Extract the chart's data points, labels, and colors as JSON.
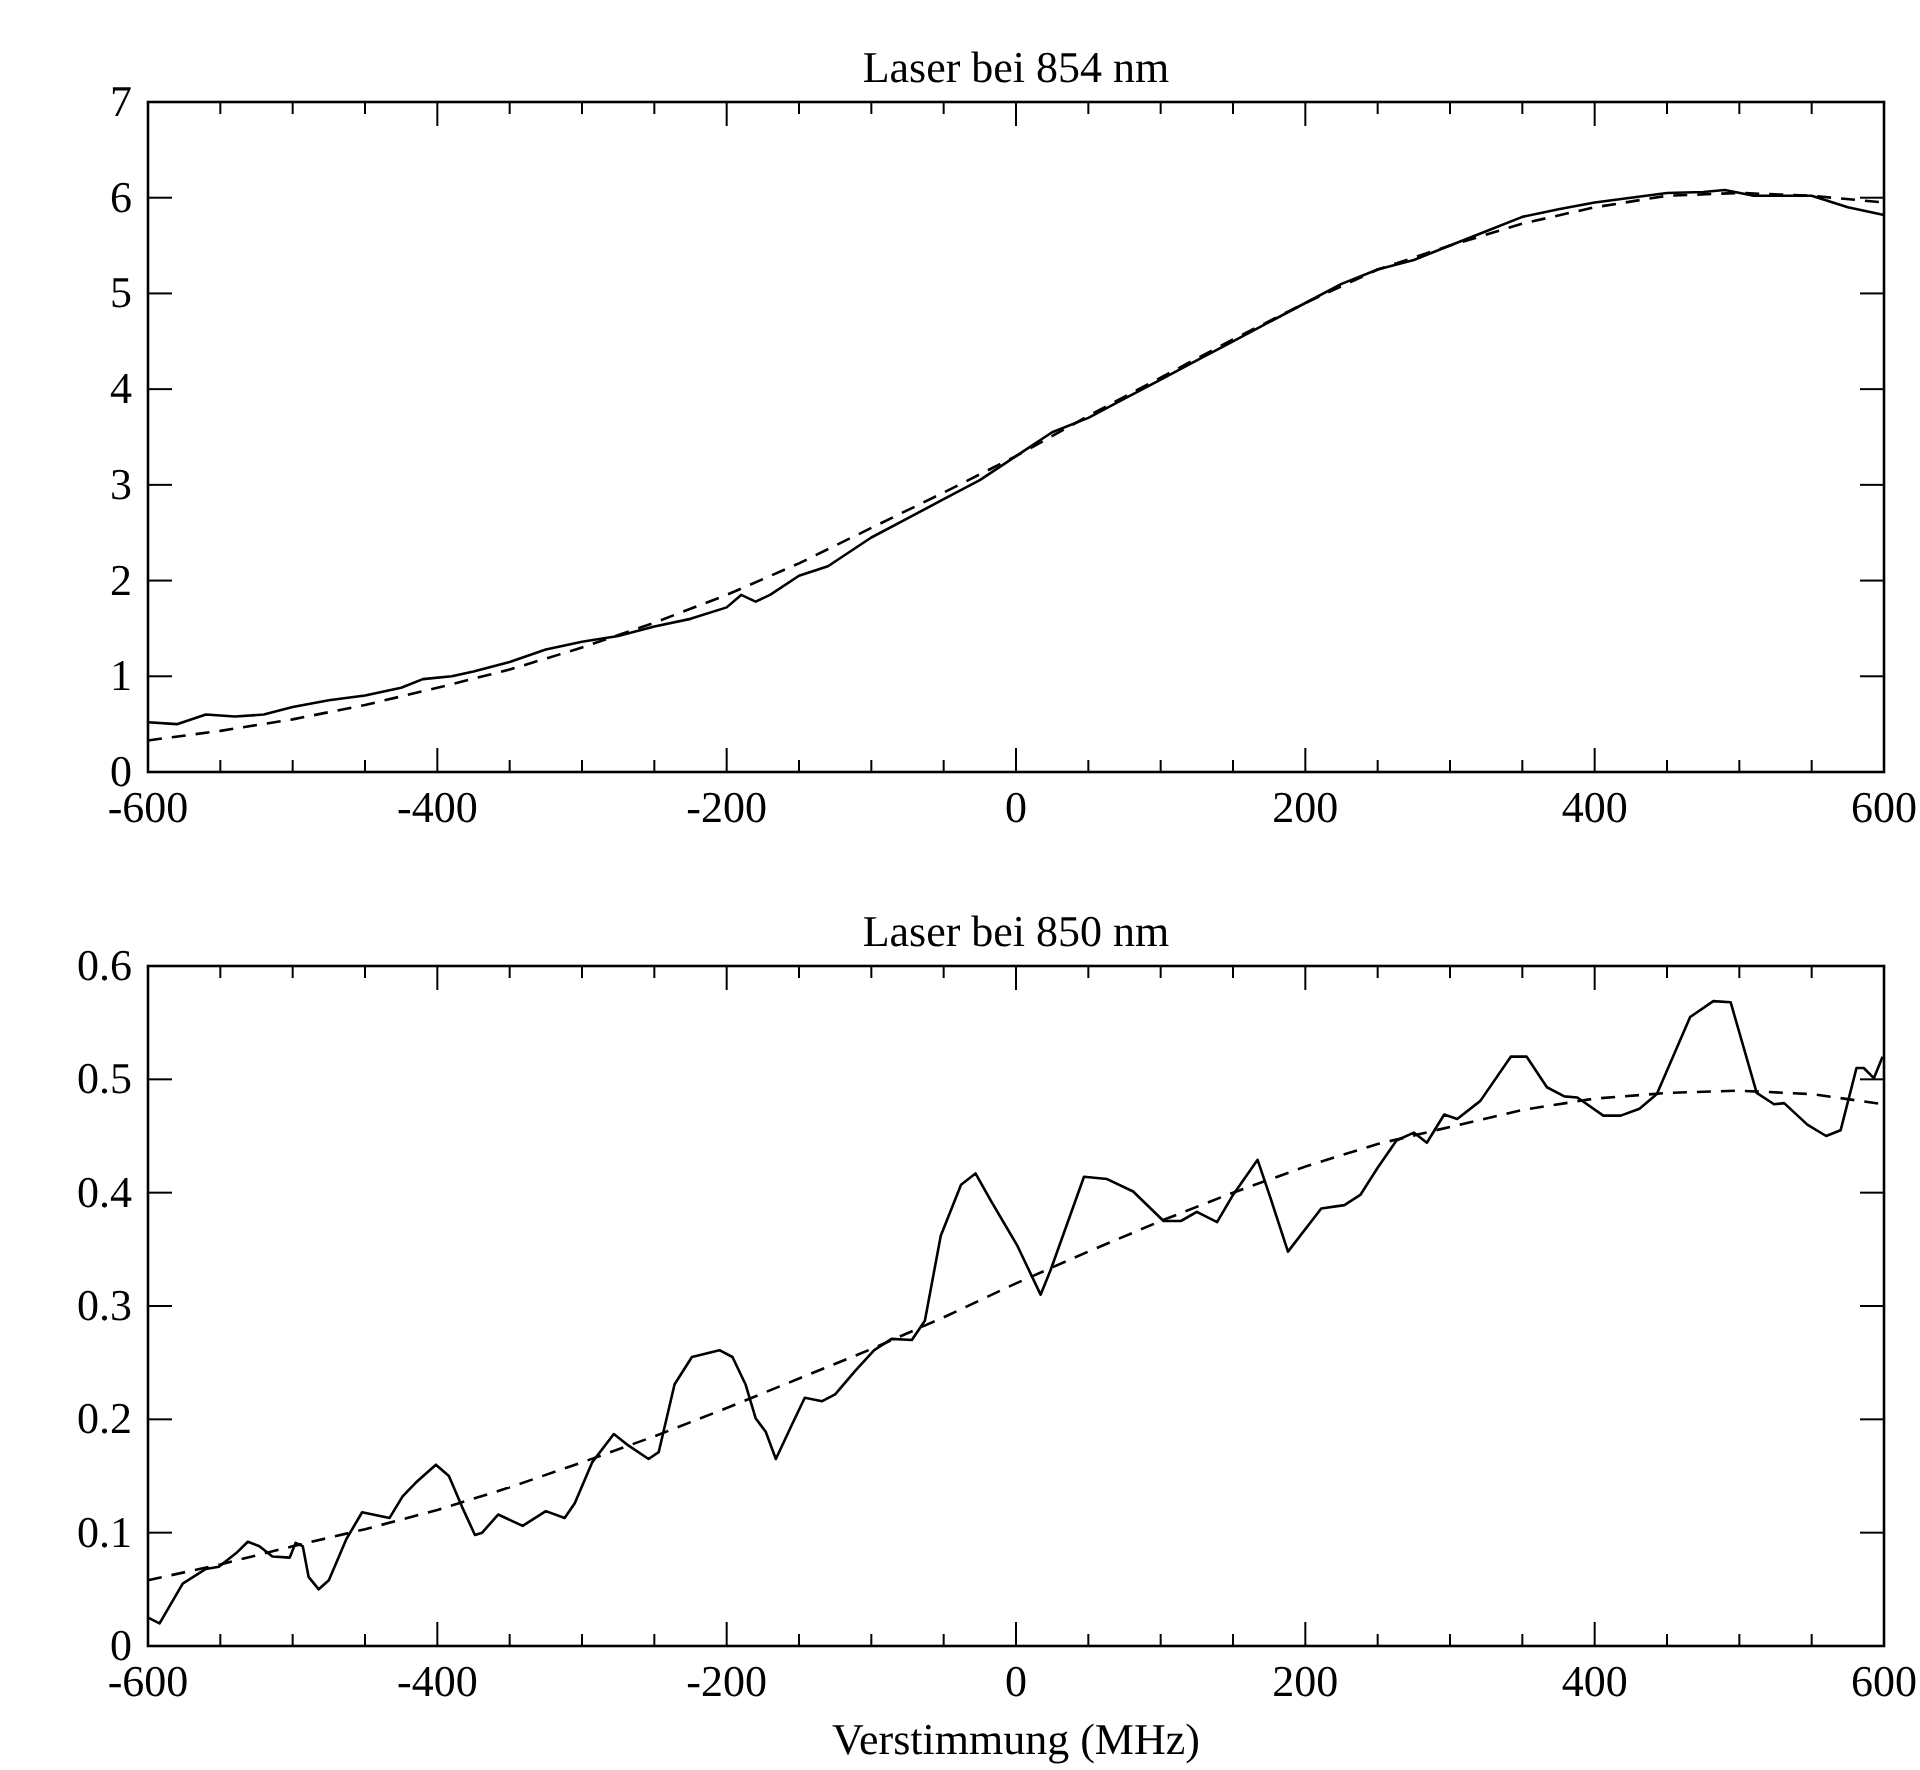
{
  "chart_data": [
    {
      "type": "line",
      "title": "Laser bei 854 nm",
      "xlim": [
        -600,
        600
      ],
      "ylim": [
        0,
        7
      ],
      "xticks": [
        -600,
        {
          "value": -550,
          "label": null
        },
        -400,
        {
          "value": -500,
          "label": null
        },
        {
          "value": -450,
          "label": null
        },
        {
          "value": -350,
          "label": null
        },
        {
          "value": -300,
          "label": null
        },
        {
          "value": -250,
          "label": null
        },
        -200,
        {
          "value": -150,
          "label": null
        },
        {
          "value": -100,
          "label": null
        },
        {
          "value": -50,
          "label": null
        },
        0,
        {
          "value": 50,
          "label": null
        },
        {
          "value": 100,
          "label": null
        },
        {
          "value": 150,
          "label": null
        },
        200,
        {
          "value": 250,
          "label": null
        },
        {
          "value": 300,
          "label": null
        },
        {
          "value": 350,
          "label": null
        },
        400,
        {
          "value": 450,
          "label": null
        },
        {
          "value": 500,
          "label": null
        },
        {
          "value": 550,
          "label": null
        },
        600
      ],
      "yticks": [
        0,
        1,
        2,
        3,
        4,
        5,
        6,
        7
      ],
      "grid": false,
      "series": [
        {
          "color": "#000000",
          "line_style": "solid",
          "x": [
            -600,
            -580,
            -560,
            -540,
            -520,
            -500,
            -475,
            -450,
            -425,
            -410,
            -390,
            -375,
            -350,
            -325,
            -300,
            -275,
            -250,
            -225,
            -200,
            -190,
            -180,
            -170,
            -150,
            -130,
            -100,
            -75,
            -50,
            -25,
            0,
            25,
            50,
            75,
            100,
            125,
            150,
            175,
            200,
            225,
            250,
            275,
            300,
            325,
            350,
            375,
            400,
            425,
            450,
            475,
            490,
            510,
            525,
            550,
            575,
            600
          ],
          "values": [
            0.52,
            0.5,
            0.6,
            0.58,
            0.6,
            0.68,
            0.75,
            0.8,
            0.88,
            0.97,
            1.0,
            1.05,
            1.15,
            1.28,
            1.36,
            1.42,
            1.52,
            1.6,
            1.72,
            1.85,
            1.78,
            1.85,
            2.05,
            2.15,
            2.45,
            2.65,
            2.85,
            3.05,
            3.3,
            3.55,
            3.7,
            3.9,
            4.1,
            4.3,
            4.5,
            4.7,
            4.9,
            5.1,
            5.25,
            5.35,
            5.5,
            5.65,
            5.8,
            5.88,
            5.95,
            6.0,
            6.05,
            6.06,
            6.08,
            6.02,
            6.02,
            6.02,
            5.9,
            5.82
          ]
        },
        {
          "color": "#000000",
          "line_style": "dashed",
          "x": [
            -600,
            -550,
            -500,
            -450,
            -400,
            -350,
            -300,
            -250,
            -200,
            -150,
            -100,
            -50,
            0,
            50,
            100,
            150,
            200,
            250,
            300,
            350,
            400,
            450,
            500,
            550,
            600
          ],
          "values": [
            0.33,
            0.43,
            0.55,
            0.7,
            0.88,
            1.07,
            1.3,
            1.56,
            1.85,
            2.18,
            2.55,
            2.92,
            3.3,
            3.72,
            4.12,
            4.52,
            4.9,
            5.25,
            5.5,
            5.73,
            5.9,
            6.02,
            6.05,
            6.02,
            5.95
          ]
        }
      ]
    },
    {
      "type": "line",
      "title": "Laser bei 850 nm",
      "xlabel": "Verstimmung (MHz)",
      "xlim": [
        -600,
        600
      ],
      "ylim": [
        0,
        0.6
      ],
      "xticks": [
        -600,
        {
          "value": -550,
          "label": null
        },
        -400,
        {
          "value": -500,
          "label": null
        },
        {
          "value": -450,
          "label": null
        },
        {
          "value": -350,
          "label": null
        },
        {
          "value": -300,
          "label": null
        },
        {
          "value": -250,
          "label": null
        },
        -200,
        {
          "value": -150,
          "label": null
        },
        {
          "value": -100,
          "label": null
        },
        {
          "value": -50,
          "label": null
        },
        0,
        {
          "value": 50,
          "label": null
        },
        {
          "value": 100,
          "label": null
        },
        {
          "value": 150,
          "label": null
        },
        200,
        {
          "value": 250,
          "label": null
        },
        {
          "value": 300,
          "label": null
        },
        {
          "value": 350,
          "label": null
        },
        400,
        {
          "value": 450,
          "label": null
        },
        {
          "value": 500,
          "label": null
        },
        {
          "value": 550,
          "label": null
        },
        600
      ],
      "yticks": [
        0,
        0.1,
        0.2,
        0.3,
        0.4,
        0.5,
        0.6
      ],
      "grid": false,
      "series": [
        {
          "color": "#000000",
          "line_style": "solid",
          "x": [
            -600,
            -592,
            -576,
            -560,
            -551,
            -539,
            -531,
            -523,
            -514,
            -502,
            -498,
            -493,
            -489,
            -482,
            -475,
            -463,
            -452,
            -433,
            -424,
            -415,
            -401,
            -392,
            -383,
            -374,
            -369,
            -358,
            -341,
            -325,
            -312,
            -305,
            -293,
            -278,
            -268,
            -254,
            -247,
            -236,
            -224,
            -205,
            -196,
            -187,
            -180,
            -173,
            -166,
            -155,
            -146,
            -134,
            -125,
            -111,
            -98,
            -86,
            -72,
            -63,
            -52,
            -38,
            -28,
            -17,
            1,
            17,
            24,
            47,
            63,
            81,
            102,
            114,
            125,
            139,
            150,
            167,
            176,
            188,
            211,
            227,
            238,
            250,
            263,
            275,
            284,
            296,
            305,
            321,
            342,
            353,
            367,
            379,
            388,
            406,
            418,
            431,
            443,
            466,
            482,
            494,
            512,
            524,
            531,
            547,
            560,
            570,
            581,
            586,
            593,
            599
          ],
          "values": [
            0.025,
            0.02,
            0.055,
            0.068,
            0.07,
            0.082,
            0.092,
            0.088,
            0.079,
            0.078,
            0.091,
            0.088,
            0.061,
            0.05,
            0.058,
            0.094,
            0.118,
            0.113,
            0.132,
            0.144,
            0.16,
            0.15,
            0.123,
            0.098,
            0.1,
            0.116,
            0.106,
            0.119,
            0.113,
            0.126,
            0.162,
            0.187,
            0.177,
            0.165,
            0.171,
            0.231,
            0.255,
            0.261,
            0.255,
            0.231,
            0.201,
            0.189,
            0.165,
            0.195,
            0.219,
            0.216,
            0.222,
            0.243,
            0.261,
            0.271,
            0.27,
            0.287,
            0.362,
            0.407,
            0.417,
            0.392,
            0.353,
            0.31,
            0.332,
            0.414,
            0.412,
            0.401,
            0.375,
            0.375,
            0.383,
            0.374,
            0.398,
            0.429,
            0.395,
            0.348,
            0.386,
            0.389,
            0.398,
            0.422,
            0.446,
            0.453,
            0.444,
            0.469,
            0.465,
            0.481,
            0.52,
            0.52,
            0.493,
            0.485,
            0.484,
            0.468,
            0.468,
            0.474,
            0.487,
            0.555,
            0.569,
            0.568,
            0.488,
            0.478,
            0.479,
            0.46,
            0.45,
            0.455,
            0.51,
            0.51,
            0.501,
            0.52
          ]
        },
        {
          "color": "#000000",
          "line_style": "dashed",
          "x": [
            -600,
            -550,
            -500,
            -450,
            -400,
            -350,
            -300,
            -250,
            -200,
            -150,
            -100,
            -50,
            0,
            50,
            100,
            150,
            200,
            250,
            300,
            350,
            400,
            450,
            500,
            550,
            600
          ],
          "values": [
            0.058,
            0.072,
            0.088,
            0.103,
            0.12,
            0.14,
            0.162,
            0.185,
            0.21,
            0.236,
            0.262,
            0.29,
            0.32,
            0.348,
            0.375,
            0.4,
            0.423,
            0.443,
            0.458,
            0.473,
            0.483,
            0.488,
            0.49,
            0.487,
            0.478
          ]
        }
      ]
    }
  ]
}
